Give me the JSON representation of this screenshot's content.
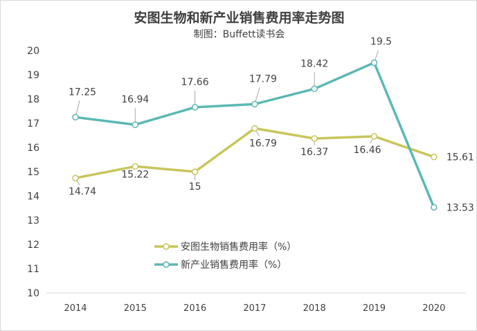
{
  "chart_data": {
    "type": "line",
    "title": "安图生物和新产业销售费用率走势图",
    "subtitle": "制图：Buffett读书会",
    "categories": [
      "2014",
      "2015",
      "2016",
      "2017",
      "2018",
      "2019",
      "2020"
    ],
    "ylim": [
      10,
      20
    ],
    "yticks": [
      "10",
      "11",
      "12",
      "13",
      "14",
      "15",
      "16",
      "17",
      "18",
      "19",
      "20"
    ],
    "grid": false,
    "legend_position": "bottom-center",
    "series": [
      {
        "name": "安图生物销售费用率（%）",
        "color": "#c8c55a",
        "values": [
          14.74,
          15.22,
          15,
          16.79,
          16.37,
          16.46,
          15.61
        ],
        "labels": [
          "14.74",
          "15.22",
          "15",
          "16.79",
          "16.37",
          "16.46",
          "15.61"
        ]
      },
      {
        "name": "新产业销售费用率（%）",
        "color": "#5bb8b3",
        "values": [
          17.25,
          16.94,
          17.66,
          17.79,
          18.42,
          19.5,
          13.53
        ],
        "labels": [
          "17.25",
          "16.94",
          "17.66",
          "17.79",
          "18.42",
          "19.5",
          "13.53"
        ]
      }
    ]
  }
}
